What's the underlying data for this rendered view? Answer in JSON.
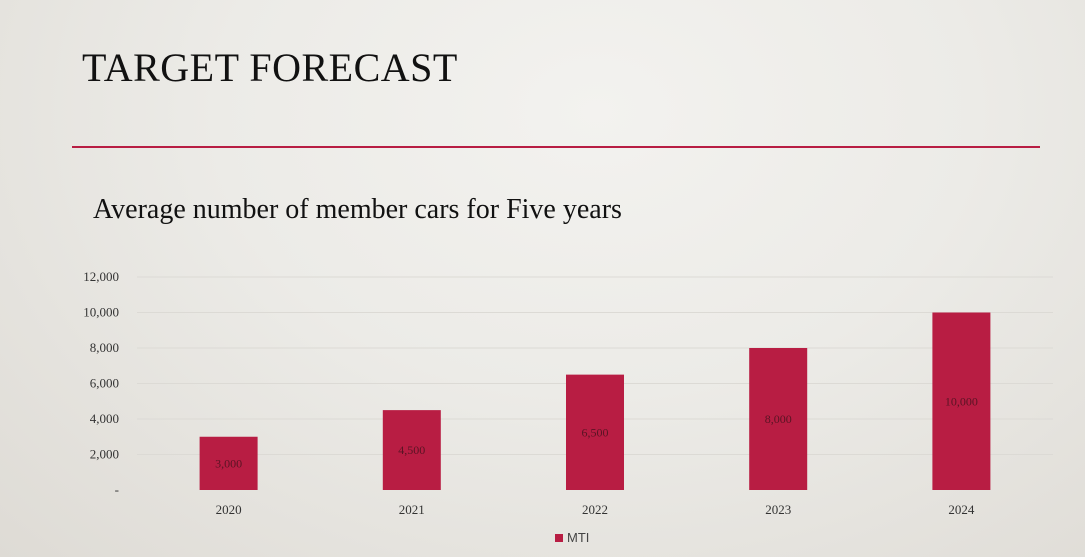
{
  "slide": {
    "title": "TARGET FORECAST"
  },
  "colors": {
    "accent": "#b81d43",
    "bar": "#b81d43",
    "grid": "#dcdad5"
  },
  "chart_data": {
    "type": "bar",
    "title": "Average number of member cars for Five years",
    "xlabel": "",
    "ylabel": "",
    "categories": [
      "2020",
      "2021",
      "2022",
      "2023",
      "2024"
    ],
    "series": [
      {
        "name": "MTI",
        "values": [
          3000,
          4500,
          6500,
          8000,
          10000
        ]
      }
    ],
    "data_labels": [
      "3,000",
      "4,500",
      "6,500",
      "8,000",
      "10,000"
    ],
    "y_ticks": [
      0,
      2000,
      4000,
      6000,
      8000,
      10000,
      12000
    ],
    "y_tick_labels": [
      "-",
      "2,000",
      "4,000",
      "6,000",
      "8,000",
      "10,000",
      "12,000"
    ],
    "ylim": [
      0,
      12000
    ],
    "grid": true,
    "legend_position": "bottom"
  }
}
